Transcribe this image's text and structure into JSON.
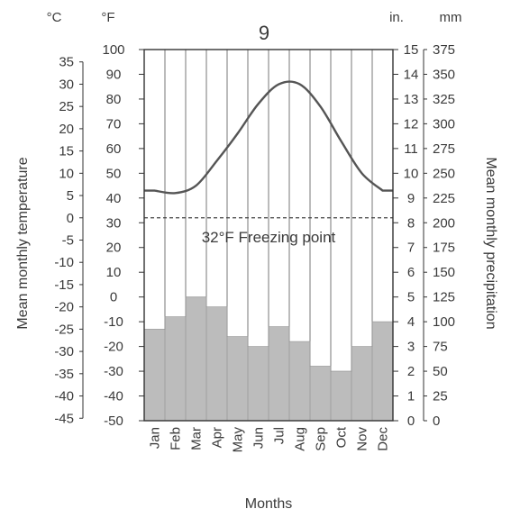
{
  "chart_data": {
    "type": "line+area",
    "title": "9",
    "xlabel": "Months",
    "ylabel_left": "Mean monthly temperature",
    "ylabel_right": "Mean monthly precipitation",
    "units": {
      "c": "°C",
      "f": "°F",
      "in": "in.",
      "mm": "mm"
    },
    "categories": [
      "Jan",
      "Feb",
      "Mar",
      "Apr",
      "May",
      "Jun",
      "Jul",
      "Aug",
      "Sep",
      "Oct",
      "Nov",
      "Dec"
    ],
    "temperature_f": [
      43,
      42,
      45,
      55,
      66,
      78,
      86,
      86,
      77,
      63,
      50,
      43
    ],
    "precipitation_in": [
      3.7,
      4.2,
      5.0,
      4.6,
      3.4,
      3.0,
      3.8,
      3.2,
      2.2,
      2.0,
      3.0,
      4.0
    ],
    "freezing_label": "32°F Freezing point",
    "freezing_f": 32,
    "ylim_f": [
      -50,
      100
    ],
    "ylim_in": [
      0,
      15
    ],
    "ticks_c": [
      35,
      30,
      25,
      20,
      15,
      10,
      5,
      0,
      -5,
      -10,
      -15,
      -20,
      -25,
      -30,
      -35,
      -40,
      -45
    ],
    "ticks_f": [
      100,
      90,
      80,
      70,
      60,
      50,
      40,
      30,
      20,
      10,
      0,
      -10,
      -20,
      -30,
      -40,
      -50
    ],
    "ticks_in": [
      15,
      14,
      13,
      12,
      11,
      10,
      9,
      8,
      7,
      6,
      5,
      4,
      3,
      2,
      1,
      0
    ],
    "ticks_mm": [
      375,
      350,
      325,
      300,
      275,
      250,
      225,
      200,
      175,
      150,
      125,
      100,
      75,
      50,
      25,
      0
    ],
    "colors": {
      "line": "#555555",
      "area": "#b9b9b9",
      "axis": "#333333",
      "grid": "#555555"
    }
  }
}
